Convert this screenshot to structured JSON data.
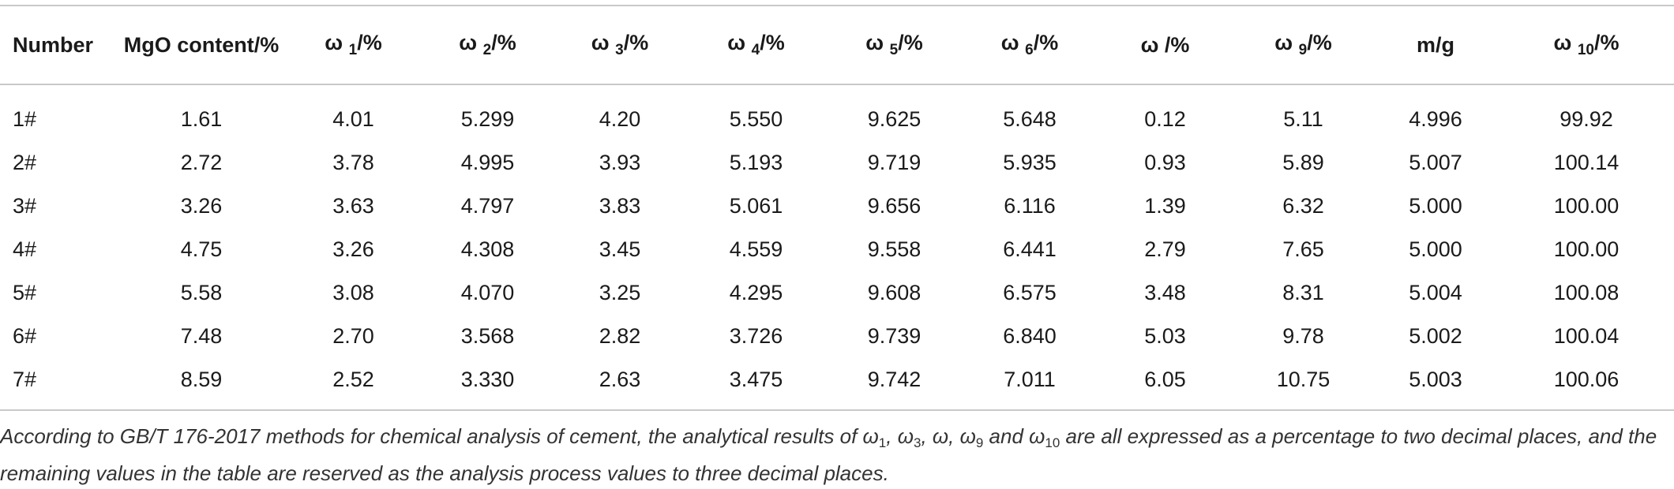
{
  "table": {
    "headers": [
      {
        "base": "Number",
        "sub": "",
        "tail": ""
      },
      {
        "base": "MgO content/%",
        "sub": "",
        "tail": ""
      },
      {
        "base": "ω ",
        "sub": "1",
        "tail": "/%"
      },
      {
        "base": "ω ",
        "sub": "2",
        "tail": "/%"
      },
      {
        "base": "ω ",
        "sub": "3",
        "tail": "/%"
      },
      {
        "base": "ω ",
        "sub": "4",
        "tail": "/%"
      },
      {
        "base": "ω ",
        "sub": "5",
        "tail": "/%"
      },
      {
        "base": "ω ",
        "sub": "6",
        "tail": "/%"
      },
      {
        "base": "ω /%",
        "sub": "",
        "tail": ""
      },
      {
        "base": "ω ",
        "sub": "9",
        "tail": "/%"
      },
      {
        "base": "m/g",
        "sub": "",
        "tail": ""
      },
      {
        "base": "ω ",
        "sub": "10",
        "tail": "/%"
      }
    ],
    "rows": [
      [
        "1#",
        "1.61",
        "4.01",
        "5.299",
        "4.20",
        "5.550",
        "9.625",
        "5.648",
        "0.12",
        "5.11",
        "4.996",
        "99.92"
      ],
      [
        "2#",
        "2.72",
        "3.78",
        "4.995",
        "3.93",
        "5.193",
        "9.719",
        "5.935",
        "0.93",
        "5.89",
        "5.007",
        "100.14"
      ],
      [
        "3#",
        "3.26",
        "3.63",
        "4.797",
        "3.83",
        "5.061",
        "9.656",
        "6.116",
        "1.39",
        "6.32",
        "5.000",
        "100.00"
      ],
      [
        "4#",
        "4.75",
        "3.26",
        "4.308",
        "3.45",
        "4.559",
        "9.558",
        "6.441",
        "2.79",
        "7.65",
        "5.000",
        "100.00"
      ],
      [
        "5#",
        "5.58",
        "3.08",
        "4.070",
        "3.25",
        "4.295",
        "9.608",
        "6.575",
        "3.48",
        "8.31",
        "5.004",
        "100.08"
      ],
      [
        "6#",
        "7.48",
        "2.70",
        "3.568",
        "2.82",
        "3.726",
        "9.739",
        "6.840",
        "5.03",
        "9.78",
        "5.002",
        "100.04"
      ],
      [
        "7#",
        "8.59",
        "2.52",
        "3.330",
        "2.63",
        "3.475",
        "9.742",
        "7.011",
        "6.05",
        "10.75",
        "5.003",
        "100.06"
      ]
    ]
  },
  "footnote": {
    "p1": "According to GB/T 176-2017 methods for chemical analysis of cement, the analytical results of ω",
    "s1": "1",
    "p2": ", ω",
    "s2": "3",
    "p3": ", ω, ω",
    "s3": "9",
    "p4": " and ω",
    "s4": "10",
    "p5": " are all expressed as a percentage to two decimal places, and the remaining values in the table are reserved as the analysis process values to three decimal places."
  }
}
